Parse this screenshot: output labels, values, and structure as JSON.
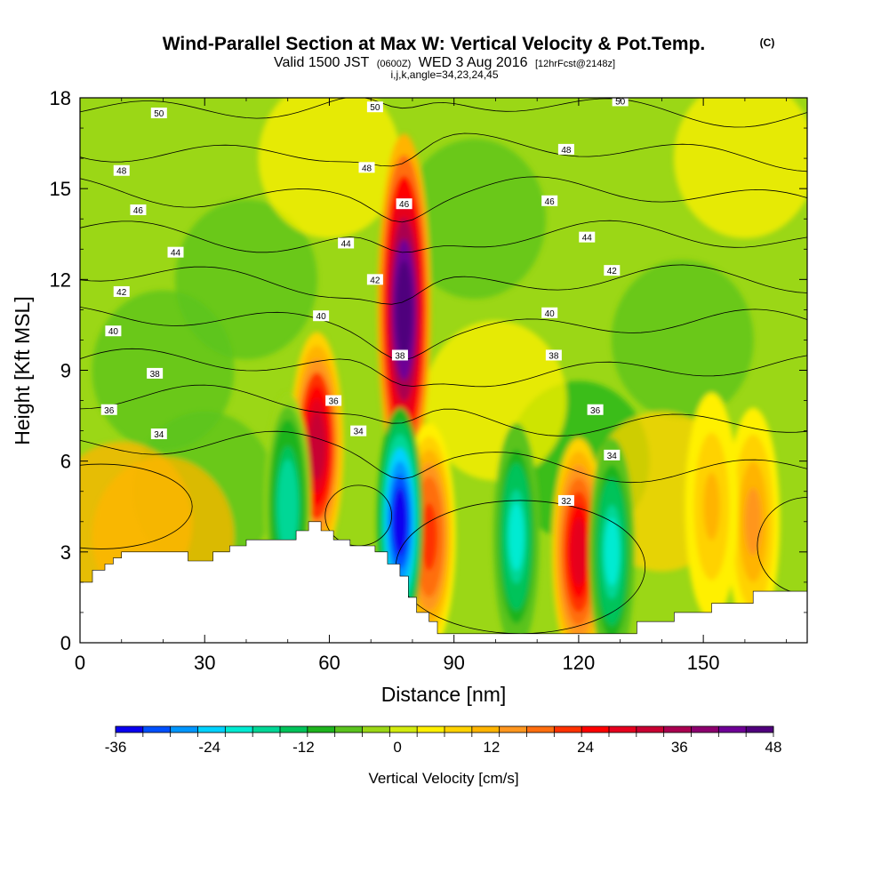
{
  "title": {
    "main": "Wind-Parallel Section at Max W: Vertical Velocity & Pot.Temp.",
    "unit_tag": "(C)",
    "valid_prefix": "Valid 1500 JST",
    "valid_z": "(0600Z)",
    "valid_date": "WED 3 Aug 2016",
    "forecast": "[12hrFcst@2148z]",
    "params": "i,j,k,angle=34,23,24,45"
  },
  "colors": {
    "terrain": "#ffffff",
    "contour": "#000000",
    "palette": [
      "#0a00f0",
      "#0050ff",
      "#0096ff",
      "#00d2ff",
      "#00ebd2",
      "#00d796",
      "#00c35a",
      "#1eb41e",
      "#5ac31e",
      "#9bd716",
      "#d2eb0f",
      "#fff000",
      "#ffd200",
      "#ffb400",
      "#ff961e",
      "#ff6e0f",
      "#ff3200",
      "#ff0000",
      "#e6001e",
      "#c80032",
      "#aa0050",
      "#8c006e",
      "#6e0096",
      "#50007d"
    ]
  },
  "chart_data": {
    "type": "heatmap",
    "subtype": "cross-section filled contour with line contours",
    "xlabel": "Distance [nm]",
    "ylabel": "Height [Kft MSL]",
    "xlim": [
      0,
      175
    ],
    "ylim": [
      0,
      18
    ],
    "x_ticks": [
      0,
      30,
      60,
      90,
      120,
      150
    ],
    "y_ticks": [
      0,
      3,
      6,
      9,
      12,
      15,
      18
    ],
    "colorbar": {
      "label": "Vertical Velocity [cm/s]",
      "min": -36,
      "max": 48,
      "step": 3.5,
      "tick_values": [
        -36,
        -24,
        -12,
        0,
        12,
        24,
        36,
        48
      ],
      "tick_labels": [
        "-36",
        "-24",
        "-12",
        "0",
        "12",
        "24",
        "36",
        "48"
      ]
    },
    "terrain_profile": [
      [
        0,
        2
      ],
      [
        3,
        2
      ],
      [
        3,
        2.4
      ],
      [
        6,
        2.4
      ],
      [
        6,
        2.6
      ],
      [
        8,
        2.6
      ],
      [
        8,
        2.8
      ],
      [
        10,
        2.8
      ],
      [
        10,
        3
      ],
      [
        26,
        3
      ],
      [
        26,
        2.7
      ],
      [
        32,
        2.7
      ],
      [
        32,
        3
      ],
      [
        36,
        3
      ],
      [
        36,
        3.2
      ],
      [
        40,
        3.2
      ],
      [
        40,
        3.4
      ],
      [
        52,
        3.4
      ],
      [
        52,
        3.7
      ],
      [
        55,
        3.7
      ],
      [
        55,
        4
      ],
      [
        58,
        4
      ],
      [
        58,
        3.7
      ],
      [
        61,
        3.7
      ],
      [
        61,
        3.4
      ],
      [
        65,
        3.4
      ],
      [
        65,
        3.2
      ],
      [
        71,
        3.2
      ],
      [
        71,
        3
      ],
      [
        74,
        3
      ],
      [
        74,
        2.6
      ],
      [
        77,
        2.6
      ],
      [
        77,
        2.2
      ],
      [
        79,
        2.2
      ],
      [
        79,
        1.5
      ],
      [
        81,
        1.5
      ],
      [
        81,
        1
      ],
      [
        84,
        1
      ],
      [
        84,
        0.7
      ],
      [
        86,
        0.7
      ],
      [
        86,
        0.3
      ],
      [
        134,
        0.3
      ],
      [
        134,
        0.7
      ],
      [
        143,
        0.7
      ],
      [
        143,
        1
      ],
      [
        152,
        1
      ],
      [
        152,
        1.3
      ],
      [
        162,
        1.3
      ],
      [
        162,
        1.7
      ],
      [
        175,
        1.7
      ]
    ],
    "updraft_cores": [
      {
        "x": 78,
        "z": 11,
        "w": 48
      },
      {
        "x": 57,
        "z": 6.5,
        "w": 32
      },
      {
        "x": 120,
        "z": 3,
        "w": 30
      },
      {
        "x": 84,
        "z": 3.5,
        "w": 22
      },
      {
        "x": 162,
        "z": 4,
        "w": 14
      },
      {
        "x": 152,
        "z": 4.5,
        "w": 10
      }
    ],
    "downdraft_cores": [
      {
        "x": 77,
        "z": 4,
        "w": -36
      },
      {
        "x": 105,
        "z": 3.5,
        "w": -20
      },
      {
        "x": 128,
        "z": 3,
        "w": -20
      },
      {
        "x": 50,
        "z": 4.5,
        "w": -18
      }
    ],
    "contour_levels": [
      30,
      32,
      34,
      36,
      38,
      40,
      42,
      44,
      46,
      48,
      50
    ],
    "contour_labels": [
      {
        "text": "50",
        "x": 19,
        "z": 17.5
      },
      {
        "text": "50",
        "x": 71,
        "z": 17.7
      },
      {
        "text": "50",
        "x": 130,
        "z": 17.9
      },
      {
        "text": "48",
        "x": 10,
        "z": 15.6
      },
      {
        "text": "48",
        "x": 69,
        "z": 15.7
      },
      {
        "text": "48",
        "x": 117,
        "z": 16.3
      },
      {
        "text": "46",
        "x": 14,
        "z": 14.3
      },
      {
        "text": "46",
        "x": 78,
        "z": 14.5
      },
      {
        "text": "46",
        "x": 113,
        "z": 14.6
      },
      {
        "text": "44",
        "x": 23,
        "z": 12.9
      },
      {
        "text": "44",
        "x": 64,
        "z": 13.2
      },
      {
        "text": "44",
        "x": 122,
        "z": 13.4
      },
      {
        "text": "42",
        "x": 10,
        "z": 11.6
      },
      {
        "text": "42",
        "x": 71,
        "z": 12
      },
      {
        "text": "42",
        "x": 128,
        "z": 12.3
      },
      {
        "text": "40",
        "x": 8,
        "z": 10.3
      },
      {
        "text": "40",
        "x": 58,
        "z": 10.8
      },
      {
        "text": "40",
        "x": 113,
        "z": 10.9
      },
      {
        "text": "38",
        "x": 18,
        "z": 8.9
      },
      {
        "text": "38",
        "x": 77,
        "z": 9.5
      },
      {
        "text": "38",
        "x": 114,
        "z": 9.5
      },
      {
        "text": "36",
        "x": 7,
        "z": 7.7
      },
      {
        "text": "36",
        "x": 61,
        "z": 8
      },
      {
        "text": "36",
        "x": 124,
        "z": 7.7
      },
      {
        "text": "34",
        "x": 19,
        "z": 6.9
      },
      {
        "text": "34",
        "x": 67,
        "z": 7
      },
      {
        "text": "34",
        "x": 128,
        "z": 6.2
      },
      {
        "text": "32",
        "x": 117,
        "z": 4.7
      }
    ]
  }
}
